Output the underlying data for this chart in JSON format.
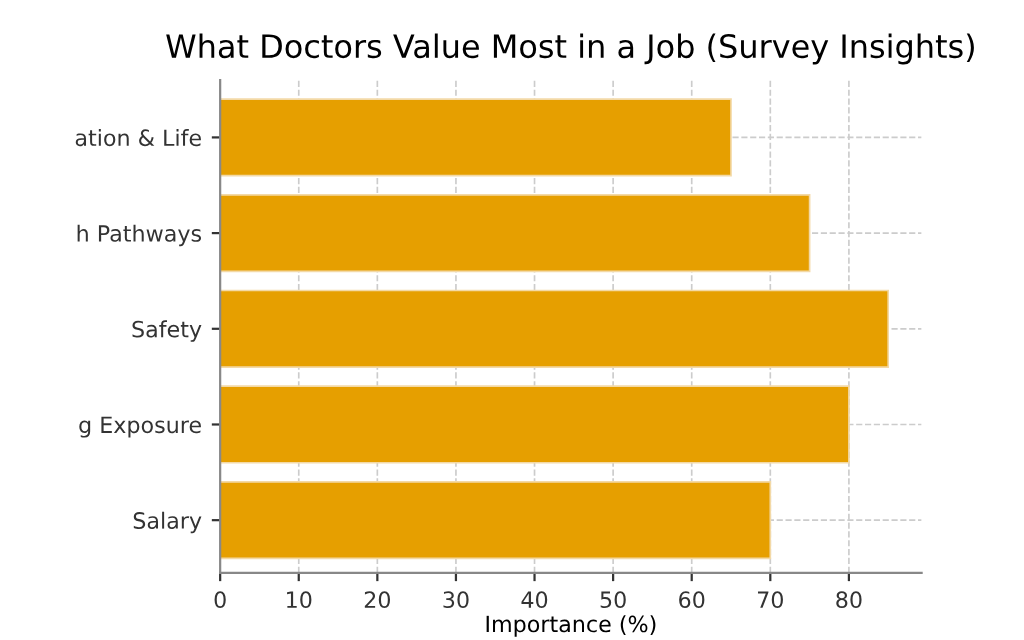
{
  "chart_data": {
    "type": "bar",
    "orientation": "horizontal",
    "title": "What Doctors Value Most in a Job (Survey Insights)",
    "xlabel": "Importance (%)",
    "categories": [
      "ation & Life",
      "h Pathways",
      "Safety",
      "g Exposure",
      "Salary"
    ],
    "values": [
      65,
      75,
      85,
      80,
      70
    ],
    "color": "#e69f00",
    "xlim": [
      0,
      89.25
    ],
    "xticks": [
      0,
      10,
      20,
      30,
      40,
      50,
      60,
      70,
      80
    ],
    "grid": true,
    "legend": false
  }
}
